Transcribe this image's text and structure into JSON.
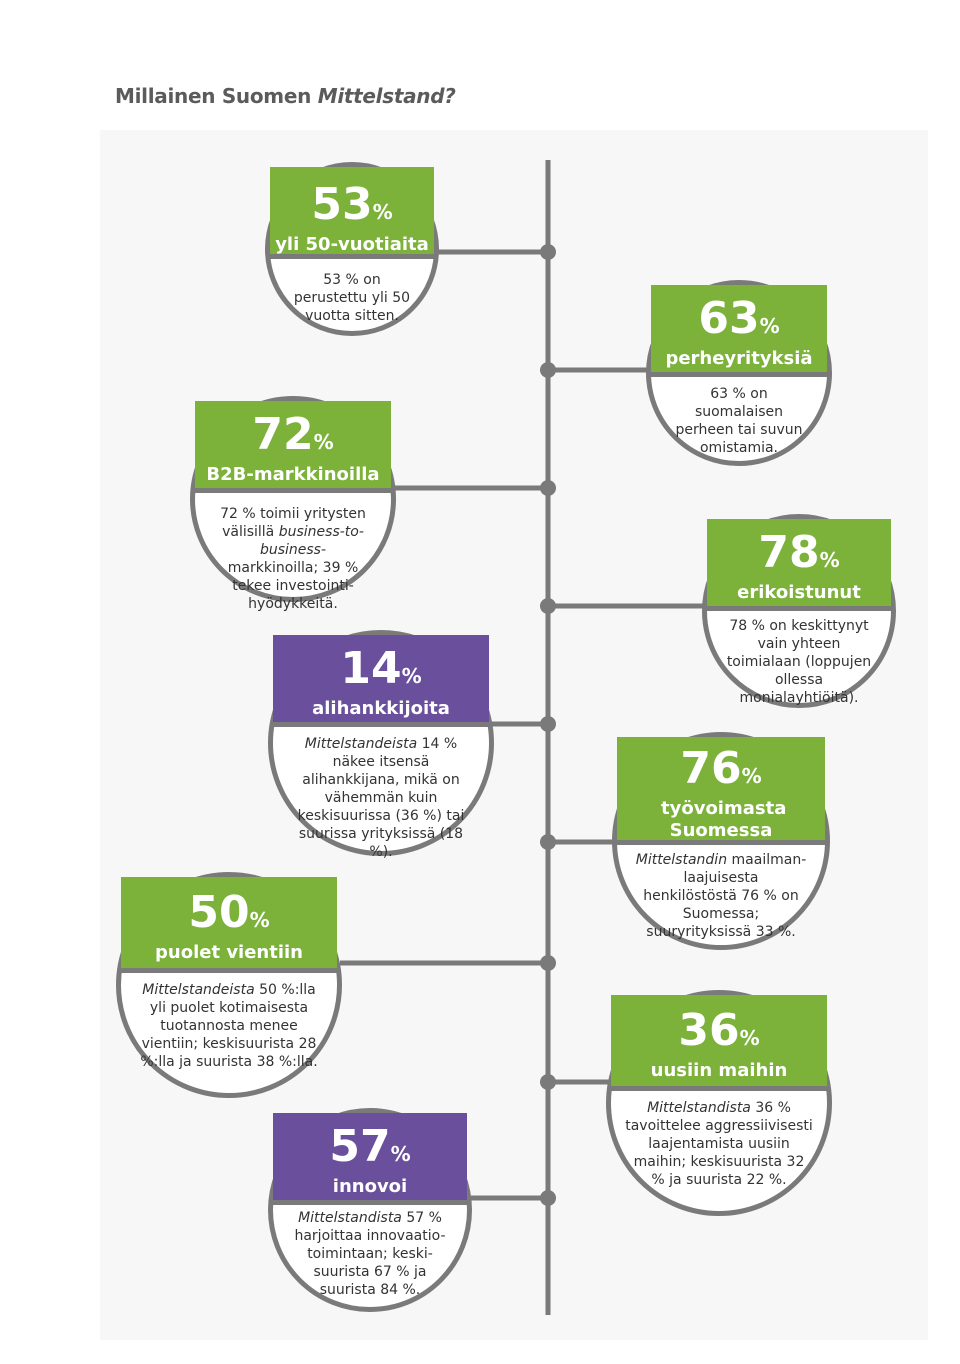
{
  "title": {
    "main": "Millainen Suomen ",
    "em": "Mittelstand?"
  },
  "items": [
    {
      "id": "c53",
      "value": "53",
      "unit": "%",
      "label": "yli 50-vuotiaita",
      "pre": "",
      "em": "",
      "text": "53 % on perustettu yli 50 vuotta sitten."
    },
    {
      "id": "c63",
      "value": "63",
      "unit": "%",
      "label": "perheyrityksiä",
      "pre": "",
      "em": "",
      "text": "63 % on suomalaisen perheen tai suvun omistamia."
    },
    {
      "id": "c72",
      "value": "72",
      "unit": "%",
      "label": "B2B-markkinoilla",
      "pre": "72 % toimii yritysten välisillä ",
      "em": "business-to-business-",
      "text": "markkinoilla; 39 % tekee investointi-hyödykkeitä."
    },
    {
      "id": "c78",
      "value": "78",
      "unit": "%",
      "label": "erikoistunut",
      "pre": "",
      "em": "",
      "text": "78 % on keskittynyt vain yhteen toimialaan (loppujen ollessa monialayhtiöitä)."
    },
    {
      "id": "c14",
      "value": "14",
      "unit": "%",
      "label": "alihankkijoita",
      "pre": "",
      "em": "Mittelstandeista",
      "text": " 14 % näkee itsensä alihankkijana, mikä on vähemmän kuin keskisuurissa (36 %) tai suurissa yrityksissä (18 %)."
    },
    {
      "id": "c76",
      "value": "76",
      "unit": "%",
      "label": "työvoimasta Suomessa",
      "pre": "",
      "em": "Mittelstandin",
      "text": " maailman-laajuisesta henkilöstöstä 76 % on Suomessa; suuryrityksissä 33 %."
    },
    {
      "id": "c50",
      "value": "50",
      "unit": "%",
      "label": "puolet vientiin",
      "pre": "",
      "em": "Mittelstandeista",
      "text": " 50 %:lla yli puolet kotimaisesta tuotannosta menee vientiin; keskisuurista 28 %:lla ja suurista 38 %:lla."
    },
    {
      "id": "c36",
      "value": "36",
      "unit": "%",
      "label": "uusiin maihin",
      "pre": "",
      "em": "Mittelstandista",
      "text": " 36 % tavoittelee aggressiivisesti laajentamista uusiin maihin; keskisuurista 32 % ja suurista 22 %."
    },
    {
      "id": "c57",
      "value": "57",
      "unit": "%",
      "label": "innovoi",
      "pre": "",
      "em": "Mittelstandista",
      "text": " 57 % harjoittaa innovaatio-toimintaan; keski-suurista 67 % ja suurista 84 %."
    }
  ],
  "colors": {
    "green": "#7cb13a",
    "purple": "#6a4f9c",
    "line": "#7a7a7a"
  }
}
